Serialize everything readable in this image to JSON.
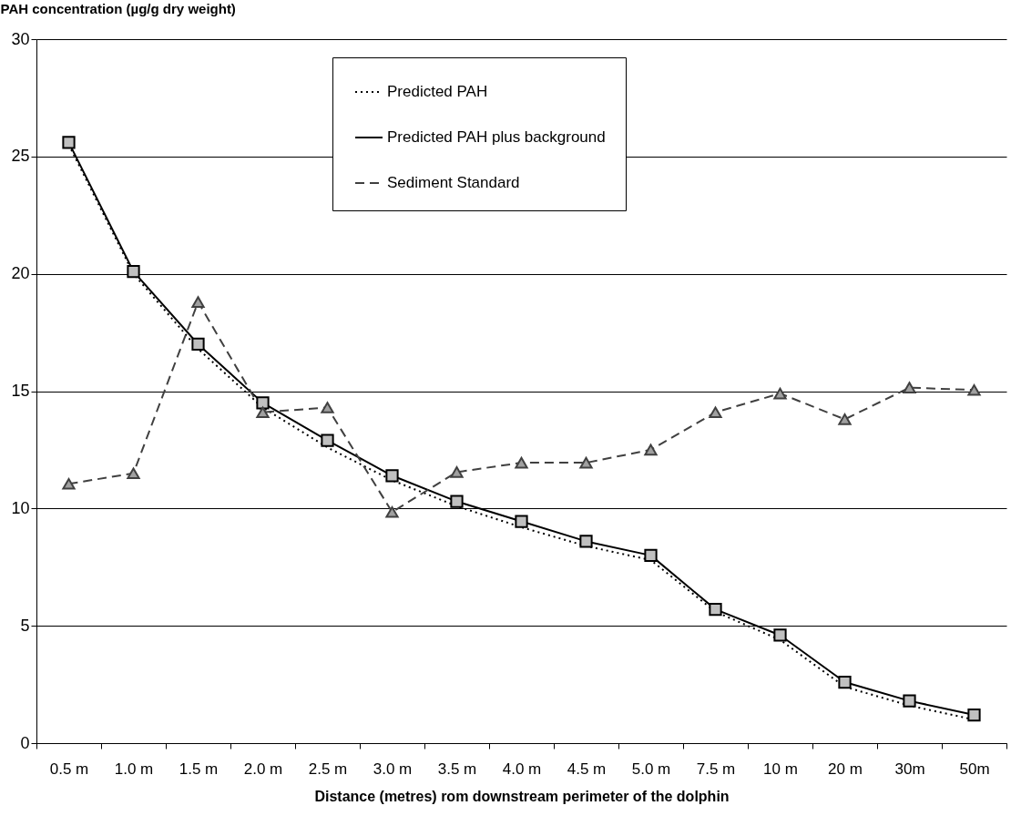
{
  "chart_data": {
    "type": "line",
    "ylabel": "PAH concentration (µg/g dry weight)",
    "xlabel": "Distance (metres) rom downstream perimeter of the dolphin",
    "categories": [
      "0.5 m",
      "1.0 m",
      "1.5 m",
      "2.0 m",
      "2.5 m",
      "3.0 m",
      "3.5 m",
      "4.0 m",
      "4.5 m",
      "5.0 m",
      "7.5 m",
      "10 m",
      "20 m",
      "30m",
      "50m"
    ],
    "series": [
      {
        "name": "Predicted PAH",
        "color": "#000000",
        "line_style": "dotted",
        "marker": "none",
        "values": [
          25.5,
          20.0,
          16.8,
          14.3,
          12.6,
          11.2,
          10.1,
          9.2,
          8.4,
          7.8,
          5.6,
          4.4,
          2.4,
          1.6,
          1.0
        ]
      },
      {
        "name": "Predicted PAH plus background",
        "color": "#000000",
        "line_style": "solid",
        "marker": "square",
        "values": [
          25.6,
          20.1,
          17.0,
          14.5,
          12.9,
          11.4,
          10.3,
          9.45,
          8.6,
          8.0,
          5.7,
          4.6,
          2.6,
          1.8,
          1.2
        ]
      },
      {
        "name": "Sediment Standard",
        "color": "#404040",
        "line_style": "dashed",
        "marker": "triangle",
        "values": [
          11.05,
          11.5,
          18.8,
          14.1,
          14.3,
          9.85,
          11.55,
          11.95,
          11.95,
          12.5,
          14.1,
          14.9,
          13.8,
          15.15,
          15.05
        ]
      }
    ],
    "ylim": [
      0,
      30
    ],
    "yticks": [
      0,
      5,
      10,
      15,
      20,
      25,
      30
    ],
    "grid": "y",
    "legend": "top"
  }
}
